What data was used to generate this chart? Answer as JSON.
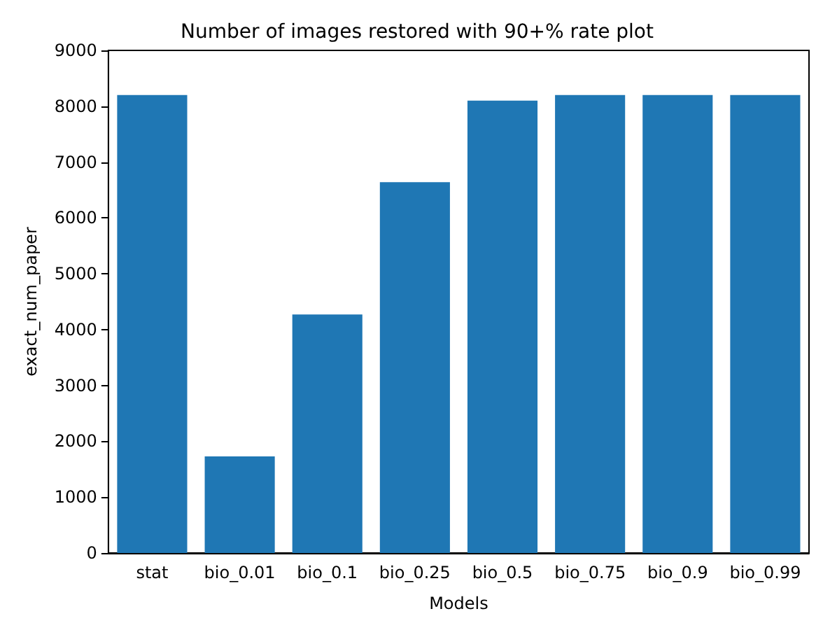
{
  "chart_data": {
    "type": "bar",
    "title": "Number of images restored with 90+% rate plot",
    "xlabel": "Models",
    "ylabel": "exact_num_paper",
    "categories": [
      "stat",
      "bio_0.01",
      "bio_0.1",
      "bio_0.25",
      "bio_0.5",
      "bio_0.75",
      "bio_0.9",
      "bio_0.99"
    ],
    "values": [
      8200,
      1730,
      4270,
      6640,
      8100,
      8200,
      8200,
      8200
    ],
    "color": "#1f77b4",
    "ylim": [
      0,
      9000
    ],
    "yticks": [
      0,
      1000,
      2000,
      3000,
      4000,
      5000,
      6000,
      7000,
      8000,
      9000
    ],
    "grid": false
  }
}
